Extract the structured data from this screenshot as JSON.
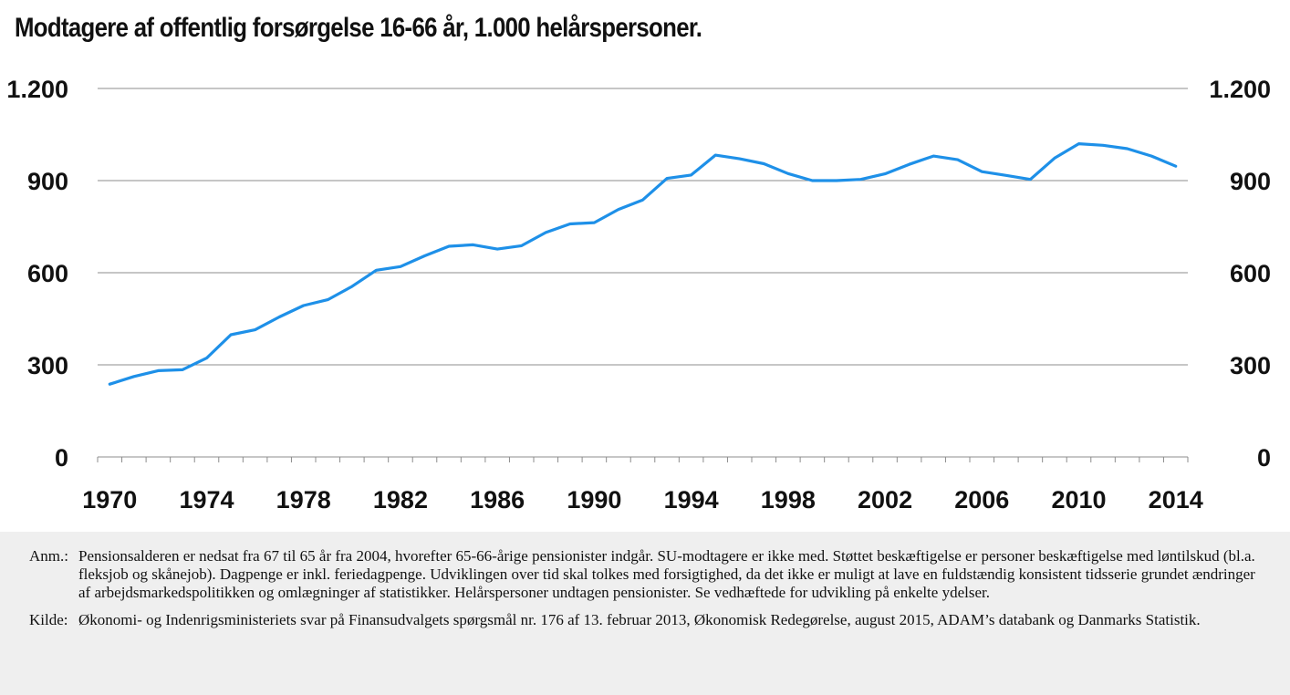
{
  "title": "Modtagere af offentlig forsørgelse 16-66 år, 1.000 helårspersoner.",
  "chart_data": {
    "type": "line",
    "title": "Modtagere af offentlig forsørgelse 16-66 år, 1.000 helårspersoner.",
    "xlabel": "",
    "ylabel": "",
    "x": [
      1970,
      1971,
      1972,
      1973,
      1974,
      1975,
      1976,
      1977,
      1978,
      1979,
      1980,
      1981,
      1982,
      1983,
      1984,
      1985,
      1986,
      1987,
      1988,
      1989,
      1990,
      1991,
      1992,
      1993,
      1994,
      1995,
      1996,
      1997,
      1998,
      1999,
      2000,
      2001,
      2002,
      2003,
      2004,
      2005,
      2006,
      2007,
      2008,
      2009,
      2010,
      2011,
      2012,
      2013,
      2014
    ],
    "series": [
      {
        "name": "",
        "color": "#1E90E8",
        "values": [
          237,
          262,
          281,
          284,
          322,
          398,
          414,
          456,
          493,
          512,
          555,
          608,
          620,
          655,
          686,
          691,
          677,
          688,
          731,
          759,
          763,
          806,
          837,
          907,
          918,
          983,
          971,
          955,
          923,
          900,
          900,
          904,
          922,
          953,
          980,
          968,
          929,
          917,
          904,
          973,
          1020,
          1015,
          1004,
          980,
          947
        ]
      }
    ],
    "xlim": [
      1969.5,
      2014.5
    ],
    "ylim": [
      0,
      1200
    ],
    "x_ticks": [
      1970,
      1974,
      1978,
      1982,
      1986,
      1990,
      1994,
      1998,
      2002,
      2006,
      2010,
      2014
    ],
    "y_ticks": [
      0,
      300,
      600,
      900,
      1200
    ],
    "y_tick_labels": [
      "0",
      "300",
      "600",
      "900",
      "1.200"
    ],
    "x_tick_labels": [
      "1970",
      "1974",
      "1978",
      "1982",
      "1986",
      "1990",
      "1994",
      "1998",
      "2002",
      "2006",
      "2010",
      "2014"
    ],
    "grid": "horizontal",
    "dual_y_axis": true
  },
  "notes": [
    {
      "label": "Anm.:",
      "text": "Pensionsalderen er nedsat fra 67 til 65 år fra 2004, hvorefter 65-66-årige pensionister indgår. SU-modtagere er ikke med. Støttet beskæftigelse er personer beskæftigelse med løntilskud (bl.a. fleksjob og skånejob). Dagpenge er inkl. feriedagpenge. Udviklingen over tid skal tolkes med forsigtighed, da det ikke er muligt at lave en fuldstændig konsistent tidsserie grundet ændringer af arbejdsmarkedspolitikken og omlægninger af statistikker. Helårspersoner undtagen pensionister. Se vedhæftede for udvikling på enkelte ydelser."
    },
    {
      "label": "Kilde:",
      "text": "Økonomi- og Indenrigsministeriets svar på Finansudvalgets spørgsmål nr. 176 af 13. februar 2013, Økonomisk Redegørelse, august 2015, ADAM’s databank og Danmarks Statistik."
    }
  ]
}
